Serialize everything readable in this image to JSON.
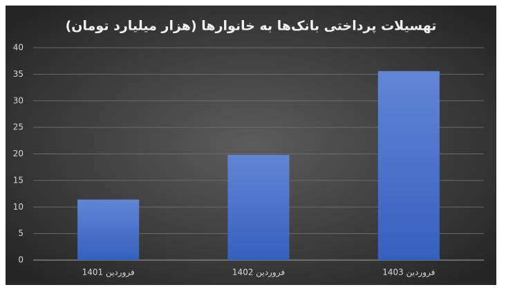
{
  "chart_data": {
    "type": "bar",
    "title": "تهسیلات پرداختی بانک‌ها به خانوارها  (هزار میلیارد تومان)",
    "categories": [
      "فروردین 1401",
      "فروردین 1402",
      "فروردین 1403"
    ],
    "values": [
      11.4,
      19.8,
      35.6
    ],
    "color": "#4472c4",
    "ylim": [
      0,
      40
    ],
    "yticks": [
      0,
      5,
      10,
      15,
      20,
      25,
      30,
      35,
      40
    ],
    "grid": true
  }
}
